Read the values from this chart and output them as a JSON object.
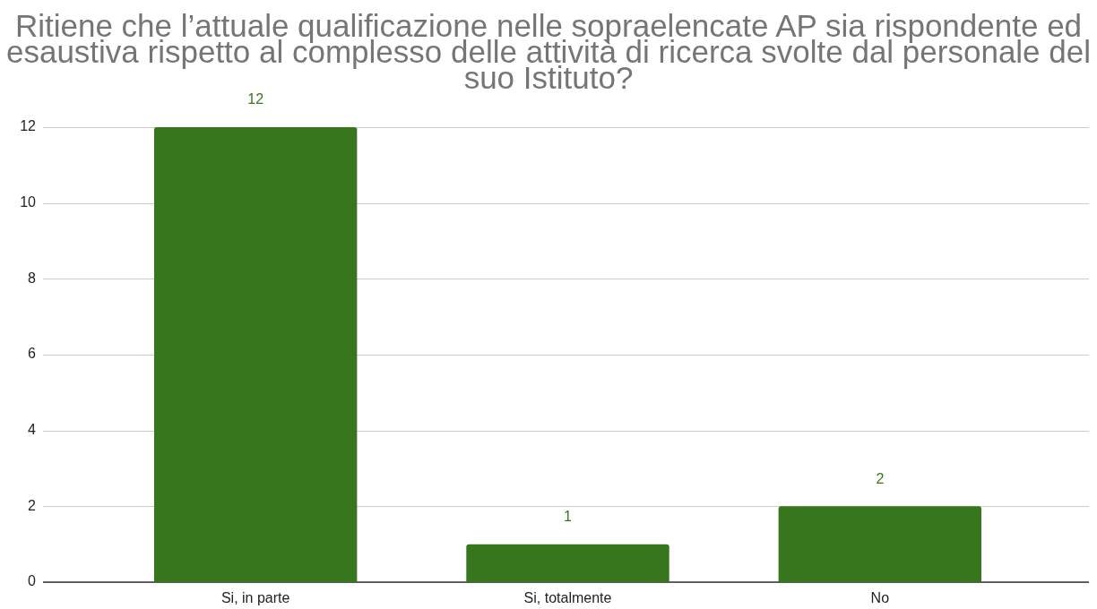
{
  "chart_data": {
    "type": "bar",
    "title": "Ritiene che l’attuale qualificazione nelle sopraelencate AP sia rispondente ed esaustiva rispetto al complesso delle attività di ricerca svolte dal personale del suo Istituto?",
    "categories": [
      "Si, in parte",
      "Si, totalmente",
      "No"
    ],
    "values": [
      12,
      1,
      2
    ],
    "color": "#38761d",
    "ylim": [
      0,
      12
    ],
    "yticks": [
      0,
      2,
      4,
      6,
      8,
      10,
      12
    ],
    "grid": "y",
    "data_labels": true
  }
}
